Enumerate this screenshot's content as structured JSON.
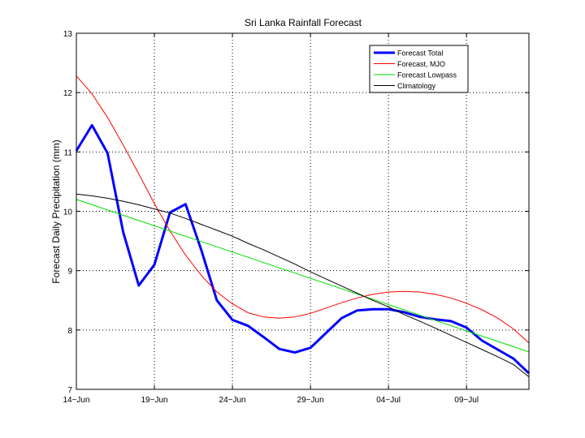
{
  "chart_data": {
    "type": "line",
    "title": "Sri Lanka Rainfall Forecast",
    "xlabel": "",
    "ylabel": "Forecast Daily Precipitation (mm)",
    "xlim": [
      0,
      29
    ],
    "ylim": [
      7,
      13
    ],
    "grid": true,
    "legend_position": "top-right",
    "x_ticks": [
      {
        "x": 0,
        "label": "14−Jun"
      },
      {
        "x": 5,
        "label": "19−Jun"
      },
      {
        "x": 10,
        "label": "24−Jun"
      },
      {
        "x": 15,
        "label": "29−Jun"
      },
      {
        "x": 20,
        "label": "04−Jul"
      },
      {
        "x": 25,
        "label": "09−Jul"
      }
    ],
    "y_ticks": [
      {
        "y": 7,
        "label": "7"
      },
      {
        "y": 8,
        "label": "8"
      },
      {
        "y": 9,
        "label": "9"
      },
      {
        "y": 10,
        "label": "10"
      },
      {
        "y": 11,
        "label": "11"
      },
      {
        "y": 12,
        "label": "12"
      },
      {
        "y": 13,
        "label": "13"
      }
    ],
    "series": [
      {
        "name": "Forecast Total",
        "color": "#0000ff",
        "width": 3,
        "x": [
          0,
          1,
          2,
          3,
          4,
          5,
          6,
          7,
          8,
          9,
          10,
          11,
          12,
          13,
          14,
          15,
          16,
          17,
          18,
          19,
          20,
          21,
          22,
          23,
          24,
          25,
          26,
          27,
          28,
          29
        ],
        "y": [
          11.02,
          11.45,
          10.98,
          9.65,
          8.75,
          9.1,
          9.98,
          10.12,
          9.35,
          8.5,
          8.17,
          8.07,
          7.88,
          7.68,
          7.62,
          7.7,
          7.95,
          8.2,
          8.33,
          8.35,
          8.35,
          8.3,
          8.22,
          8.18,
          8.15,
          8.04,
          7.82,
          7.67,
          7.52,
          7.27
        ]
      },
      {
        "name": "Forecast, MJO",
        "color": "#ff0000",
        "width": 1,
        "x": [
          0,
          1,
          2,
          3,
          4,
          5,
          6,
          7,
          8,
          9,
          10,
          11,
          12,
          13,
          14,
          15,
          16,
          17,
          18,
          19,
          20,
          21,
          22,
          23,
          24,
          25,
          26,
          27,
          28,
          29
        ],
        "y": [
          12.28,
          11.98,
          11.58,
          11.12,
          10.63,
          10.13,
          9.67,
          9.26,
          8.92,
          8.64,
          8.44,
          8.29,
          8.22,
          8.2,
          8.22,
          8.28,
          8.37,
          8.46,
          8.54,
          8.6,
          8.64,
          8.65,
          8.64,
          8.6,
          8.54,
          8.45,
          8.34,
          8.2,
          8.02,
          7.78
        ]
      },
      {
        "name": "Forecast Lowpass",
        "color": "#00dd00",
        "width": 1,
        "x": [
          0,
          29
        ],
        "y": [
          10.2,
          7.63
        ]
      },
      {
        "name": "Climatology",
        "color": "#000000",
        "width": 1,
        "x": [
          0,
          1,
          2,
          3,
          4,
          5,
          6,
          7,
          8,
          9,
          10,
          11,
          12,
          13,
          14,
          15,
          16,
          17,
          18,
          19,
          20,
          21,
          22,
          23,
          24,
          25,
          26,
          27,
          28,
          29
        ],
        "y": [
          10.29,
          10.26,
          10.22,
          10.17,
          10.11,
          10.04,
          9.97,
          9.88,
          9.78,
          9.68,
          9.58,
          9.46,
          9.35,
          9.23,
          9.11,
          8.98,
          8.86,
          8.74,
          8.62,
          8.5,
          8.39,
          8.26,
          8.15,
          8.03,
          7.91,
          7.79,
          7.67,
          7.55,
          7.42,
          7.21
        ]
      }
    ]
  }
}
